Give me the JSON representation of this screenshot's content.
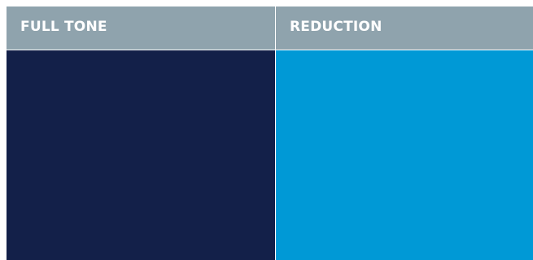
{
  "columns": [
    {
      "label": "FULL TONE",
      "color": "#132049"
    },
    {
      "label": "REDUCTION",
      "color": "#0099d6"
    }
  ]
}
